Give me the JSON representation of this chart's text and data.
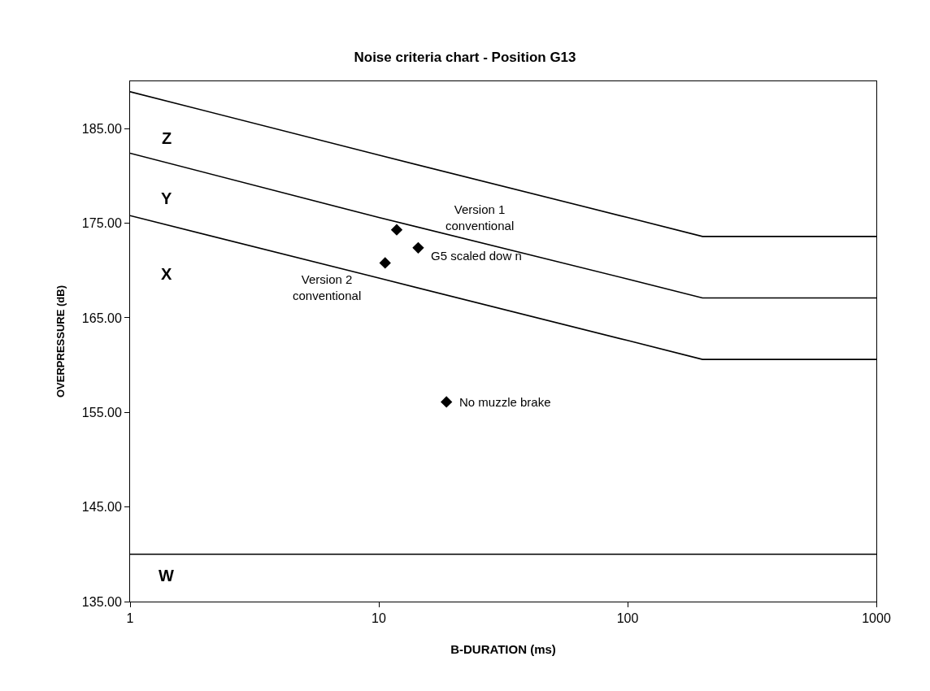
{
  "chart_data": {
    "type": "line",
    "title": "Noise criteria chart - Position G13",
    "xlabel": "B-DURATION (ms)",
    "ylabel": "OVERPRESSURE (dB)",
    "log": "x",
    "grid": false,
    "xlim": [
      1,
      1000
    ],
    "xticks": [
      1,
      10,
      100,
      1000
    ],
    "ylim": [
      135,
      190
    ],
    "yticks": [
      {
        "value": 135,
        "label": "135.00"
      },
      {
        "value": 145,
        "label": "145.00"
      },
      {
        "value": 155,
        "label": "155.00"
      },
      {
        "value": 165,
        "label": "165.00"
      },
      {
        "value": 175,
        "label": "175.00"
      },
      {
        "value": 185,
        "label": "185.00"
      }
    ],
    "series": [
      {
        "type": "line",
        "color": "#000000",
        "line_style": "solid",
        "marker": "none",
        "x": [
          1,
          10,
          100,
          200,
          1000
        ],
        "values": [
          188.9,
          182.2,
          175.6,
          173.6,
          173.6
        ]
      },
      {
        "type": "line",
        "color": "#000000",
        "line_style": "solid",
        "marker": "none",
        "x": [
          1,
          10,
          100,
          200,
          1000
        ],
        "values": [
          182.4,
          175.6,
          169.1,
          167.1,
          167.1
        ]
      },
      {
        "type": "line",
        "color": "#000000",
        "line_style": "solid",
        "marker": "none",
        "x": [
          1,
          10,
          100,
          200,
          1000
        ],
        "values": [
          175.8,
          169.2,
          162.6,
          160.6,
          160.6
        ]
      },
      {
        "type": "line",
        "color": "#000000",
        "line_style": "solid",
        "marker": "none",
        "x": [
          1,
          1000
        ],
        "values": [
          140,
          140
        ]
      },
      {
        "type": "scatter",
        "color": "#000000",
        "marker": "diamond",
        "x": [
          11.8,
          14.4,
          10.6,
          18.7
        ],
        "values": [
          174.3,
          172.4,
          170.8,
          156.1
        ]
      }
    ],
    "annotations": [
      "Z",
      "Y",
      "X",
      "W",
      "Version 1\nconventional",
      {
        "text": "G5 scaled dow n",
        "x": 14.4,
        "y": 172.4
      },
      {
        "text": "Version 2\nconventional",
        "x": 10.6,
        "y": 170.8
      },
      {
        "text": "No muzzle brake",
        "x": 18.7,
        "y": 156.1
      }
    ]
  }
}
